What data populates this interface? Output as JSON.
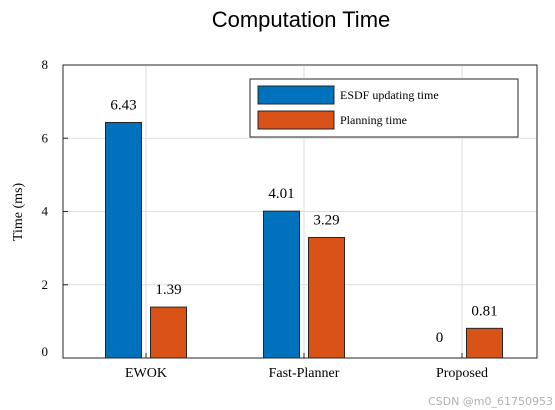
{
  "chart_data": {
    "type": "bar",
    "title": "Computation Time",
    "ylabel": "Time (ms)",
    "xlabel": "",
    "categories": [
      "EWOK",
      "Fast-Planner",
      "Proposed"
    ],
    "series": [
      {
        "name": "ESDF updating time",
        "values": [
          6.43,
          4.01,
          0
        ],
        "labels": [
          "6.43",
          "4.01",
          "0"
        ],
        "color": "#0072BD"
      },
      {
        "name": "Planning time",
        "values": [
          1.39,
          3.29,
          0.81
        ],
        "labels": [
          "1.39",
          "3.29",
          "0.81"
        ],
        "color": "#D95319"
      }
    ],
    "ylim": [
      0,
      8
    ],
    "yticks": [
      0,
      2,
      4,
      6,
      8
    ],
    "ytick_labels": [
      "0",
      "2",
      "4",
      "6",
      "8"
    ],
    "grid": true,
    "legend_position": "top-right"
  },
  "watermark": "CSDN @m0_61750953"
}
